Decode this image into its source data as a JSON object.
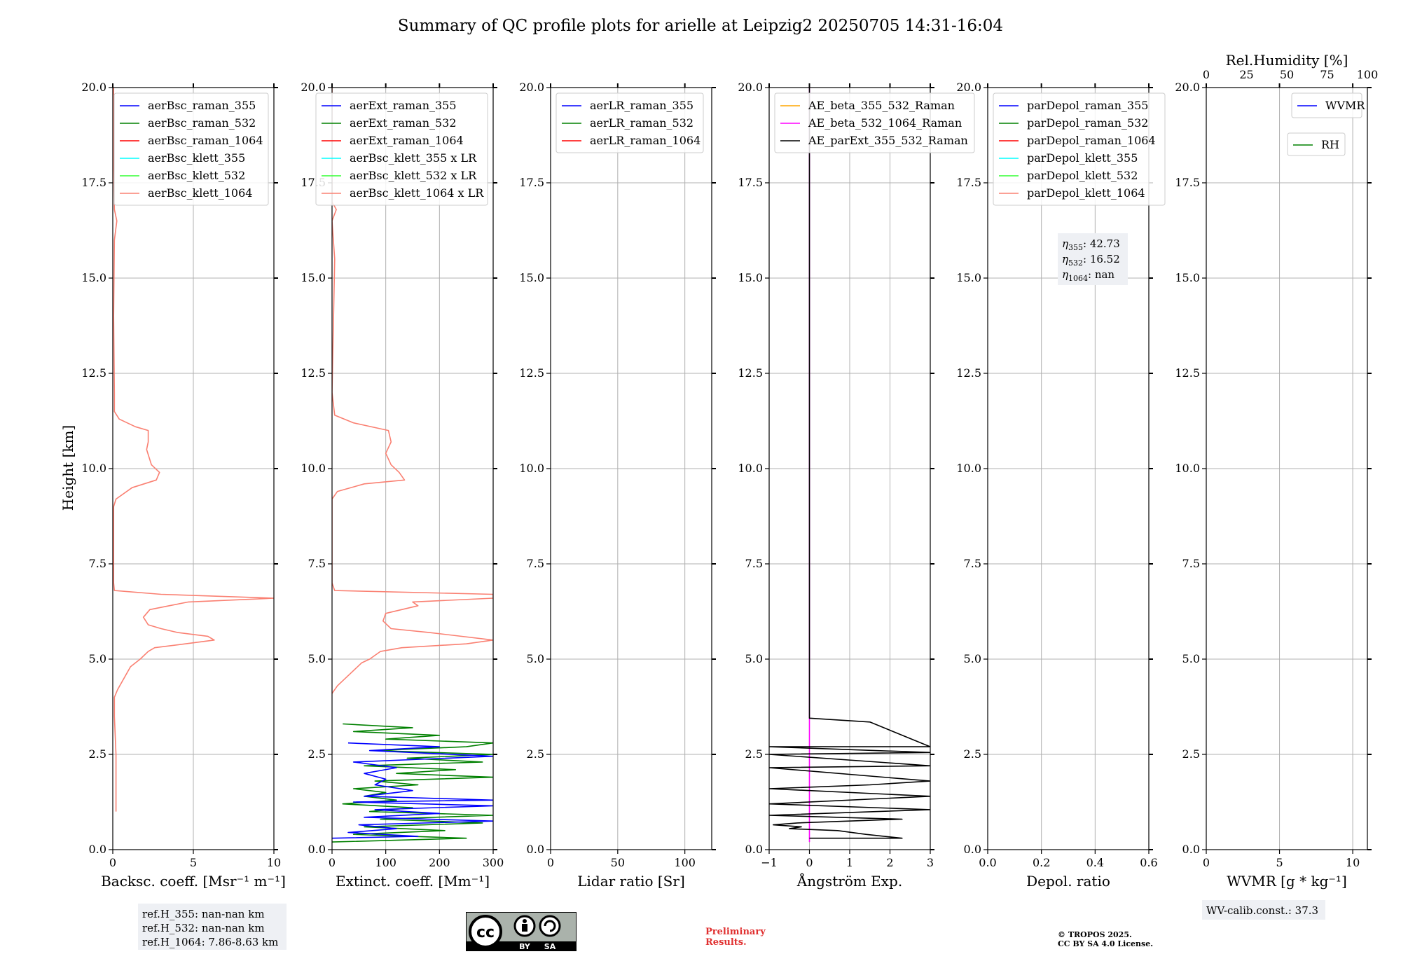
{
  "figure": {
    "title": "Summary of QC profile plots for arielle at Leipzig2 20250705 14:31-16:04",
    "ylabel": "Height [km]",
    "yticks": [
      "0.0",
      "2.5",
      "5.0",
      "7.5",
      "10.0",
      "12.5",
      "15.0",
      "17.5",
      "20.0"
    ]
  },
  "chart_data": [
    {
      "type": "line",
      "name": "backscatter",
      "xlabel": "Backsc. coeff. [Msr⁻¹ m⁻¹]",
      "xlim": [
        0,
        10
      ],
      "ylim": [
        0,
        20
      ],
      "xticks": [
        0,
        5,
        10
      ],
      "xtick_labels": [
        "0",
        "5",
        "10"
      ],
      "legend": "top-right",
      "legend_entries": [
        {
          "name": "aerBsc_raman_355",
          "color": "#0000ff"
        },
        {
          "name": "aerBsc_raman_532",
          "color": "#008000"
        },
        {
          "name": "aerBsc_raman_1064",
          "color": "#ff0000"
        },
        {
          "name": "aerBsc_klett_355",
          "color": "#00ffff"
        },
        {
          "name": "aerBsc_klett_532",
          "color": "#32ff32"
        },
        {
          "name": "aerBsc_klett_1064",
          "color": "#fa8072"
        }
      ],
      "series": [
        {
          "name": "aerBsc_klett_1064",
          "color": "#fa8072",
          "points": [
            [
              0.2,
              1.0
            ],
            [
              0.2,
              1.5
            ],
            [
              0.2,
              2.5
            ],
            [
              0.1,
              3.5
            ],
            [
              0.1,
              4.0
            ],
            [
              0.3,
              4.2
            ],
            [
              0.7,
              4.5
            ],
            [
              1.1,
              4.8
            ],
            [
              1.7,
              5.0
            ],
            [
              2.2,
              5.2
            ],
            [
              2.6,
              5.3
            ],
            [
              4.5,
              5.4
            ],
            [
              6.3,
              5.5
            ],
            [
              5.9,
              5.6
            ],
            [
              4.0,
              5.7
            ],
            [
              3.0,
              5.8
            ],
            [
              2.2,
              5.9
            ],
            [
              1.9,
              6.1
            ],
            [
              2.3,
              6.3
            ],
            [
              3.5,
              6.4
            ],
            [
              4.7,
              6.5
            ],
            [
              10.0,
              6.6
            ],
            [
              3.0,
              6.7
            ],
            [
              0.1,
              6.8
            ],
            [
              0.05,
              7.0
            ],
            [
              0.05,
              9.0
            ],
            [
              0.2,
              9.2
            ],
            [
              1.2,
              9.5
            ],
            [
              2.7,
              9.7
            ],
            [
              2.9,
              9.9
            ],
            [
              2.4,
              10.1
            ],
            [
              2.1,
              10.5
            ],
            [
              2.2,
              10.7
            ],
            [
              2.2,
              11.0
            ],
            [
              1.4,
              11.1
            ],
            [
              0.4,
              11.3
            ],
            [
              0.1,
              11.5
            ],
            [
              0.1,
              12.0
            ],
            [
              0.05,
              14.0
            ],
            [
              0.1,
              16.0
            ],
            [
              0.25,
              16.5
            ],
            [
              0.1,
              16.8
            ],
            [
              0.05,
              18.0
            ],
            [
              0.05,
              20.0
            ]
          ]
        }
      ],
      "annotation": [
        "ref.H_355: nan-nan km",
        "ref.H_532: nan-nan km",
        "ref.H_1064: 7.86-8.63 km"
      ]
    },
    {
      "type": "line",
      "name": "extinction",
      "xlabel": "Extinct. coeff. [Mm⁻¹]",
      "xlim": [
        0,
        300
      ],
      "ylim": [
        0,
        20
      ],
      "xticks": [
        0,
        100,
        200,
        300
      ],
      "xtick_labels": [
        "0",
        "100",
        "200",
        "300"
      ],
      "legend": "top-right",
      "legend_entries": [
        {
          "name": "aerExt_raman_355",
          "color": "#0000ff"
        },
        {
          "name": "aerExt_raman_532",
          "color": "#008000"
        },
        {
          "name": "aerExt_raman_1064",
          "color": "#ff0000"
        },
        {
          "name": "aerBsc_klett_355 x LR",
          "color": "#00ffff"
        },
        {
          "name": "aerBsc_klett_532 x LR",
          "color": "#32ff32"
        },
        {
          "name": "aerBsc_klett_1064 x LR",
          "color": "#fa8072"
        }
      ],
      "series": [
        {
          "name": "aerBsc_klett_1064 x LR",
          "color": "#fa8072",
          "points": [
            [
              0,
              4.1
            ],
            [
              10,
              4.3
            ],
            [
              25,
              4.5
            ],
            [
              40,
              4.7
            ],
            [
              55,
              4.9
            ],
            [
              70,
              5.0
            ],
            [
              90,
              5.2
            ],
            [
              130,
              5.3
            ],
            [
              250,
              5.4
            ],
            [
              300,
              5.5
            ],
            [
              180,
              5.7
            ],
            [
              110,
              5.8
            ],
            [
              95,
              6.0
            ],
            [
              100,
              6.2
            ],
            [
              160,
              6.4
            ],
            [
              150,
              6.5
            ],
            [
              300,
              6.6
            ],
            [
              300,
              6.7
            ],
            [
              5,
              6.8
            ],
            [
              0,
              7.0
            ],
            [
              0,
              9.2
            ],
            [
              10,
              9.4
            ],
            [
              60,
              9.6
            ],
            [
              135,
              9.7
            ],
            [
              125,
              9.9
            ],
            [
              110,
              10.1
            ],
            [
              100,
              10.4
            ],
            [
              110,
              10.7
            ],
            [
              105,
              11.0
            ],
            [
              40,
              11.2
            ],
            [
              5,
              11.4
            ],
            [
              0,
              12.0
            ],
            [
              5,
              15.5
            ],
            [
              0,
              16.5
            ],
            [
              8,
              16.8
            ],
            [
              0,
              17.0
            ],
            [
              0,
              20.0
            ]
          ]
        },
        {
          "name": "aerExt_raman_532",
          "color": "#008000",
          "points": [
            [
              0,
              0.2
            ],
            [
              250,
              0.3
            ],
            [
              40,
              0.4
            ],
            [
              210,
              0.5
            ],
            [
              60,
              0.6
            ],
            [
              280,
              0.7
            ],
            [
              90,
              0.8
            ],
            [
              300,
              0.9
            ],
            [
              70,
              1.0
            ],
            [
              150,
              1.1
            ],
            [
              20,
              1.2
            ],
            [
              120,
              1.3
            ],
            [
              60,
              1.4
            ],
            [
              100,
              1.5
            ],
            [
              40,
              1.6
            ],
            [
              160,
              1.7
            ],
            [
              80,
              1.8
            ],
            [
              300,
              1.9
            ],
            [
              120,
              2.0
            ],
            [
              230,
              2.1
            ],
            [
              60,
              2.2
            ],
            [
              280,
              2.3
            ],
            [
              140,
              2.4
            ],
            [
              300,
              2.5
            ],
            [
              80,
              2.6
            ],
            [
              250,
              2.7
            ],
            [
              300,
              2.8
            ],
            [
              100,
              2.9
            ],
            [
              200,
              3.0
            ],
            [
              40,
              3.1
            ],
            [
              150,
              3.2
            ],
            [
              20,
              3.3
            ]
          ]
        },
        {
          "name": "aerExt_raman_355",
          "color": "#0000ff",
          "points": [
            [
              0,
              0.3
            ],
            [
              160,
              0.35
            ],
            [
              30,
              0.45
            ],
            [
              120,
              0.55
            ],
            [
              50,
              0.65
            ],
            [
              300,
              0.75
            ],
            [
              60,
              0.85
            ],
            [
              200,
              0.95
            ],
            [
              80,
              1.05
            ],
            [
              300,
              1.15
            ],
            [
              40,
              1.25
            ],
            [
              300,
              1.3
            ],
            [
              60,
              1.4
            ],
            [
              150,
              1.55
            ],
            [
              80,
              1.7
            ],
            [
              100,
              1.85
            ],
            [
              60,
              2.0
            ],
            [
              120,
              2.15
            ],
            [
              40,
              2.3
            ],
            [
              300,
              2.45
            ],
            [
              70,
              2.6
            ],
            [
              200,
              2.7
            ],
            [
              30,
              2.8
            ]
          ]
        }
      ]
    },
    {
      "type": "line",
      "name": "lidar-ratio",
      "xlabel": "Lidar ratio [Sr]",
      "xlim": [
        0,
        120
      ],
      "ylim": [
        0,
        20
      ],
      "xticks": [
        0,
        50,
        100
      ],
      "xtick_labels": [
        "0",
        "50",
        "100"
      ],
      "legend": "top-left",
      "legend_entries": [
        {
          "name": "aerLR_raman_355",
          "color": "#0000ff"
        },
        {
          "name": "aerLR_raman_532",
          "color": "#008000"
        },
        {
          "name": "aerLR_raman_1064",
          "color": "#ff0000"
        }
      ],
      "series": []
    },
    {
      "type": "line",
      "name": "angstrom",
      "xlabel": "Ångström Exp.",
      "xlim": [
        -1,
        3
      ],
      "ylim": [
        0,
        20
      ],
      "xticks": [
        -1,
        0,
        1,
        2,
        3
      ],
      "xtick_labels": [
        "−1",
        "0",
        "1",
        "2",
        "3"
      ],
      "legend": "top-left",
      "legend_entries": [
        {
          "name": "AE_beta_355_532_Raman",
          "color": "#ffa500"
        },
        {
          "name": "AE_beta_532_1064_Raman",
          "color": "#ff00ff"
        },
        {
          "name": "AE_parExt_355_532_Raman",
          "color": "#000000"
        }
      ],
      "series": [
        {
          "name": "AE_beta_532_1064_Raman",
          "color": "#ff00ff",
          "points": [
            [
              0,
              0.2
            ],
            [
              0,
              20.0
            ]
          ]
        },
        {
          "name": "AE_parExt_355_532_Raman",
          "color": "#000000",
          "points": [
            [
              0,
              0.3
            ],
            [
              2.3,
              0.3
            ],
            [
              1.4,
              0.4
            ],
            [
              0.7,
              0.5
            ],
            [
              -0.5,
              0.55
            ],
            [
              -0.2,
              0.6
            ],
            [
              -0.9,
              0.65
            ],
            [
              -0.3,
              0.7
            ],
            [
              2.3,
              0.8
            ],
            [
              -1.0,
              0.9
            ],
            [
              3.0,
              1.05
            ],
            [
              -1.0,
              1.2
            ],
            [
              3.0,
              1.4
            ],
            [
              -1.0,
              1.6
            ],
            [
              1.5,
              1.7
            ],
            [
              3.0,
              1.8
            ],
            [
              -1.0,
              2.15
            ],
            [
              3.0,
              2.2
            ],
            [
              -1.0,
              2.5
            ],
            [
              3.0,
              2.55
            ],
            [
              -1.0,
              2.7
            ],
            [
              3.0,
              2.7
            ],
            [
              1.5,
              3.35
            ],
            [
              0,
              3.45
            ],
            [
              0,
              20.0
            ]
          ]
        }
      ]
    },
    {
      "type": "line",
      "name": "depolarization",
      "xlabel": "Depol. ratio",
      "xlim": [
        0,
        0.6
      ],
      "ylim": [
        0,
        20
      ],
      "xticks": [
        0,
        0.2,
        0.4,
        0.6
      ],
      "xtick_labels": [
        "0.0",
        "0.2",
        "0.4",
        "0.6"
      ],
      "legend": "top-left",
      "legend_entries": [
        {
          "name": "parDepol_raman_355",
          "color": "#0000ff"
        },
        {
          "name": "parDepol_raman_532",
          "color": "#008000"
        },
        {
          "name": "parDepol_raman_1064",
          "color": "#ff0000"
        },
        {
          "name": "parDepol_klett_355",
          "color": "#00ffff"
        },
        {
          "name": "parDepol_klett_532",
          "color": "#32ff32"
        },
        {
          "name": "parDepol_klett_1064",
          "color": "#fa8072"
        }
      ],
      "series": [],
      "annotation": [
        {
          "sym": "η",
          "sub": "355",
          "val": ": 42.73"
        },
        {
          "sym": "η",
          "sub": "532",
          "val": ": 16.52"
        },
        {
          "sym": "η",
          "sub": "1064",
          "val": ": nan"
        }
      ]
    },
    {
      "type": "line",
      "name": "wvmr",
      "xlabel": "WVMR [g * kg⁻¹]",
      "xlim": [
        0,
        11
      ],
      "ylim": [
        0,
        20
      ],
      "xticks": [
        0,
        5,
        10
      ],
      "xtick_labels": [
        "0",
        "5",
        "10"
      ],
      "top_axis": {
        "label": "Rel.Humidity [%]",
        "xlim": [
          0,
          100
        ],
        "xticks": [
          0,
          25,
          50,
          75,
          100
        ],
        "xtick_labels": [
          "0",
          "25",
          "50",
          "75",
          "100"
        ]
      },
      "legend": "top-right",
      "legend_entries": [
        {
          "name": "WVMR",
          "color": "#0000ff"
        }
      ],
      "legend2_entries": [
        {
          "name": "RH",
          "color": "#008000"
        }
      ],
      "series": [],
      "annotation": [
        "WV-calib.const.: 37.3"
      ]
    }
  ],
  "footer": {
    "cc_left": "cc",
    "cc_by": "BY",
    "cc_sa": "SA",
    "preliminary": [
      "Preliminary",
      "Results."
    ],
    "copyright": [
      "© TROPOS 2025.",
      "CC BY SA 4.0 License."
    ]
  },
  "colors": {
    "grid": "#b0b0b0",
    "annotation_bg": "#eef0f4",
    "preliminary": "#e03030"
  }
}
